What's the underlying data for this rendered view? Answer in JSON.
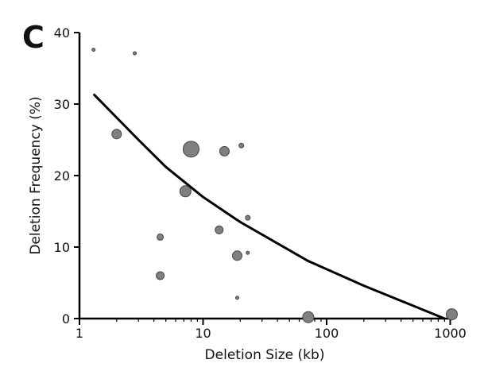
{
  "panel_label": "C",
  "chart_data": {
    "type": "scatter",
    "title": "",
    "xlabel": "Deletion Size (kb)",
    "ylabel": "Deletion Frequency (%)",
    "x_scale": "log",
    "xlim": [
      1,
      1000
    ],
    "ylim": [
      0,
      40
    ],
    "xticks": [
      1,
      10,
      100,
      1000
    ],
    "yticks": [
      0,
      10,
      20,
      30,
      40
    ],
    "xtick_labels": [
      "1",
      "10",
      "100",
      "1000"
    ],
    "ytick_labels": [
      "0",
      "10",
      "20",
      "30",
      "40"
    ],
    "grid": false,
    "point_color": "#808080",
    "line_color": "#000000",
    "points": [
      {
        "x": 1.3,
        "y": 37.6,
        "size": 2
      },
      {
        "x": 2.8,
        "y": 37.1,
        "size": 2
      },
      {
        "x": 2.0,
        "y": 25.8,
        "size": 6
      },
      {
        "x": 8.0,
        "y": 23.7,
        "size": 10
      },
      {
        "x": 14.9,
        "y": 23.4,
        "size": 6
      },
      {
        "x": 20.4,
        "y": 24.2,
        "size": 3
      },
      {
        "x": 7.2,
        "y": 17.8,
        "size": 7
      },
      {
        "x": 4.5,
        "y": 11.4,
        "size": 4
      },
      {
        "x": 13.5,
        "y": 12.4,
        "size": 5
      },
      {
        "x": 18.9,
        "y": 8.8,
        "size": 6
      },
      {
        "x": 23.0,
        "y": 14.1,
        "size": 3
      },
      {
        "x": 23.0,
        "y": 9.2,
        "size": 2
      },
      {
        "x": 18.9,
        "y": 2.9,
        "size": 2
      },
      {
        "x": 4.5,
        "y": 6.0,
        "size": 5
      },
      {
        "x": 71,
        "y": 0.2,
        "size": 7
      },
      {
        "x": 1030,
        "y": 0.6,
        "size": 7
      }
    ],
    "fit_line": [
      {
        "x": 1.3,
        "y": 31.4
      },
      {
        "x": 3,
        "y": 25.0
      },
      {
        "x": 5,
        "y": 21.2
      },
      {
        "x": 10,
        "y": 17.0
      },
      {
        "x": 20,
        "y": 13.5
      },
      {
        "x": 70,
        "y": 8.1
      },
      {
        "x": 200,
        "y": 4.6
      },
      {
        "x": 900,
        "y": 0
      }
    ]
  }
}
